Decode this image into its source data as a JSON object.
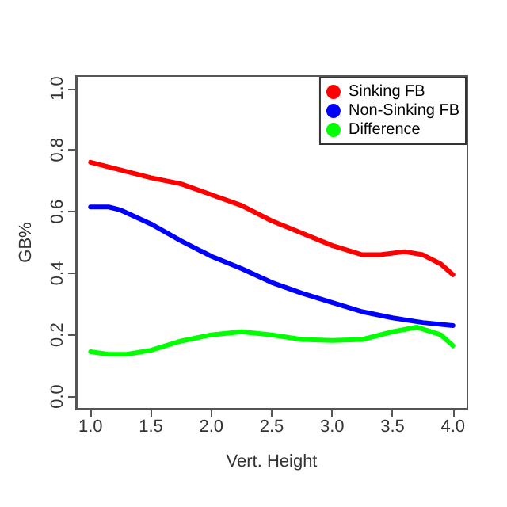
{
  "chart_data": {
    "type": "line",
    "xlabel": "Vert. Height",
    "ylabel": "GB%",
    "xlim": [
      0.88,
      4.12
    ],
    "ylim": [
      -0.04,
      1.04
    ],
    "xticks": [
      {
        "value": 1,
        "label": "1.0"
      },
      {
        "value": 1.5,
        "label": "1.5"
      },
      {
        "value": 2,
        "label": "2.0"
      },
      {
        "value": 2.5,
        "label": "2.5"
      },
      {
        "value": 3,
        "label": "3.0"
      },
      {
        "value": 3.5,
        "label": "3.5"
      },
      {
        "value": 4,
        "label": "4.0"
      }
    ],
    "yticks": [
      {
        "value": 0,
        "label": "0.0"
      },
      {
        "value": 0.2,
        "label": "0.2"
      },
      {
        "value": 0.4,
        "label": "0.4"
      },
      {
        "value": 0.6,
        "label": "0.6"
      },
      {
        "value": 0.8,
        "label": "0.8"
      },
      {
        "value": 1,
        "label": "1.0"
      }
    ],
    "legend": "top right",
    "grid": false,
    "marker": "none",
    "line_style": "solid",
    "series": [
      {
        "name": "Sinking FB",
        "color": "#ff0000",
        "x": [
          1.0,
          1.25,
          1.5,
          1.75,
          2.0,
          2.25,
          2.5,
          2.75,
          3.0,
          3.25,
          3.4,
          3.6,
          3.75,
          3.9,
          4.0
        ],
        "values": [
          0.76,
          0.735,
          0.71,
          0.69,
          0.655,
          0.62,
          0.57,
          0.53,
          0.49,
          0.46,
          0.46,
          0.47,
          0.46,
          0.43,
          0.395
        ]
      },
      {
        "name": "Non-Sinking FB",
        "color": "#0000ff",
        "x": [
          1.0,
          1.15,
          1.25,
          1.5,
          1.75,
          2.0,
          2.25,
          2.5,
          2.75,
          3.0,
          3.25,
          3.5,
          3.75,
          4.0
        ],
        "values": [
          0.615,
          0.615,
          0.605,
          0.56,
          0.505,
          0.455,
          0.415,
          0.37,
          0.335,
          0.305,
          0.275,
          0.255,
          0.24,
          0.23
        ]
      },
      {
        "name": "Difference",
        "color": "#00ff00",
        "x": [
          1.0,
          1.15,
          1.3,
          1.5,
          1.75,
          2.0,
          2.25,
          2.5,
          2.75,
          3.0,
          3.25,
          3.5,
          3.7,
          3.9,
          4.0
        ],
        "values": [
          0.145,
          0.137,
          0.137,
          0.15,
          0.18,
          0.2,
          0.21,
          0.2,
          0.185,
          0.182,
          0.185,
          0.21,
          0.225,
          0.2,
          0.165
        ]
      }
    ]
  }
}
